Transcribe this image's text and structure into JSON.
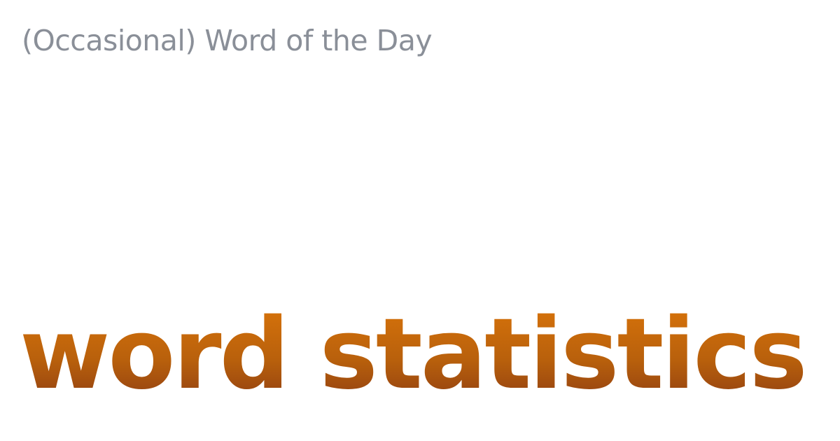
{
  "header": {
    "series_title": "(Occasional) Word of the Day"
  },
  "main": {
    "word": "word statistics"
  },
  "colors": {
    "background": "#ffffff",
    "series_title": "#8a8f98",
    "word_gradient_top": "#d9740a",
    "word_gradient_bottom": "#8c3b12"
  }
}
